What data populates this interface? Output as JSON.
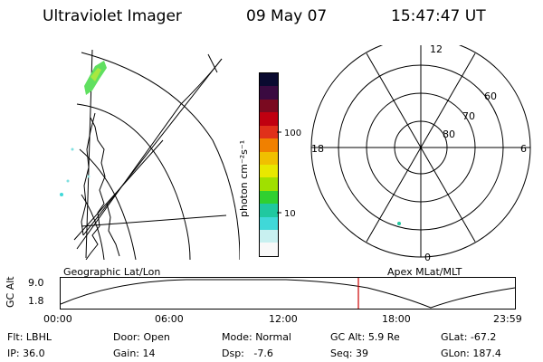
{
  "header": {
    "title": "Ultraviolet Imager",
    "date": "09 May 07",
    "time": "15:47:47 UT"
  },
  "colorbar": {
    "label": "photon cm⁻²s⁻¹",
    "ticks": [
      "100",
      "10"
    ],
    "colors": [
      "#0a0a30",
      "#3a0a40",
      "#7a0a20",
      "#c00010",
      "#e0301a",
      "#f08000",
      "#f0c000",
      "#e8e800",
      "#a0e000",
      "#30d030",
      "#20c8a0",
      "#40d8d8",
      "#c8f0f0",
      "#f8f8f8"
    ]
  },
  "polar": {
    "mlt_labels": {
      "top": "12",
      "left": "18",
      "right": "6",
      "bottom": "0"
    },
    "lat_labels": [
      "60",
      "70",
      "80"
    ]
  },
  "panel_labels": {
    "left": "Geographic Lat/Lon",
    "right": "Apex MLat/MLT"
  },
  "altplot": {
    "ylabel": "GC Alt",
    "yticks": [
      "9.0",
      "1.8"
    ],
    "xticks": [
      "00:00",
      "06:00",
      "12:00",
      "18:00",
      "23:59"
    ],
    "marker_time": "15:47"
  },
  "status": {
    "flt_label": "Flt:",
    "flt_value": "LBHL",
    "ip_label": "IP:",
    "ip_value": "36.0",
    "door_label": "Door:",
    "door_value": "Open",
    "gain_label": "Gain:",
    "gain_value": "14",
    "mode_label": "Mode:",
    "mode_value": "Normal",
    "dsp_label": "Dsp:",
    "dsp_value": "-7.6",
    "gcalt_label": "GC Alt:",
    "gcalt_value": "5.9 Re",
    "seq_label": "Seq:",
    "seq_value": "39",
    "glat_label": "GLat:",
    "glat_value": "-67.2",
    "glon_label": "GLon:",
    "glon_value": "187.4"
  }
}
